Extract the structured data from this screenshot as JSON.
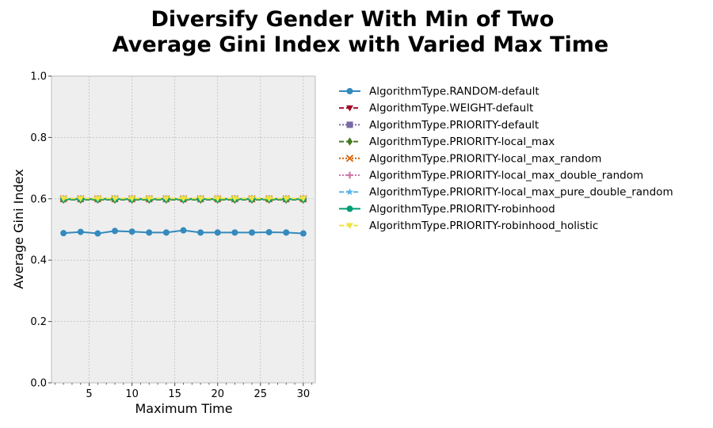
{
  "chart_data": {
    "type": "line",
    "title_lines": [
      "Diversify Gender With Min of Two",
      "Average Gini Index with Varied Max Time"
    ],
    "xlabel": "Maximum Time",
    "ylabel": "Average Gini Index",
    "xlim": [
      0.6,
      31.4
    ],
    "ylim": [
      0.0,
      1.0
    ],
    "x_ticks": [
      5,
      10,
      15,
      20,
      25,
      30
    ],
    "y_ticks": [
      0.0,
      0.2,
      0.4,
      0.6,
      0.8,
      1.0
    ],
    "y_tick_labels": [
      "0.0",
      "0.2",
      "0.4",
      "0.6",
      "0.8",
      "1.0"
    ],
    "grid": true,
    "legend_position": "outside-right",
    "background": "#eeeeee",
    "x": [
      2,
      4,
      6,
      8,
      10,
      12,
      14,
      16,
      18,
      20,
      22,
      24,
      26,
      28,
      30
    ],
    "series": [
      {
        "name": "AlgorithmType.RANDOM-default",
        "color": "#348abd",
        "marker": "circle",
        "dash": "solid",
        "values": [
          0.488,
          0.492,
          0.487,
          0.495,
          0.493,
          0.49,
          0.49,
          0.497,
          0.49,
          0.49,
          0.49,
          0.49,
          0.491,
          0.49,
          0.487
        ]
      },
      {
        "name": "AlgorithmType.WEIGHT-default",
        "color": "#a60628",
        "marker": "triangle-down",
        "dash": "dashed",
        "values": [
          0.6,
          0.6,
          0.6,
          0.6,
          0.6,
          0.6,
          0.6,
          0.6,
          0.6,
          0.6,
          0.6,
          0.6,
          0.6,
          0.6,
          0.6
        ]
      },
      {
        "name": "AlgorithmType.PRIORITY-default",
        "color": "#7a68a6",
        "marker": "square",
        "dash": "dotted",
        "values": [
          0.599,
          0.599,
          0.599,
          0.599,
          0.599,
          0.599,
          0.599,
          0.599,
          0.599,
          0.599,
          0.599,
          0.599,
          0.599,
          0.599,
          0.599
        ]
      },
      {
        "name": "AlgorithmType.PRIORITY-local_max",
        "color": "#467821",
        "marker": "diamond",
        "dash": "dashed",
        "values": [
          0.597,
          0.597,
          0.597,
          0.597,
          0.597,
          0.597,
          0.597,
          0.597,
          0.597,
          0.597,
          0.597,
          0.597,
          0.597,
          0.597,
          0.597
        ]
      },
      {
        "name": "AlgorithmType.PRIORITY-local_max_random",
        "color": "#d55e00",
        "marker": "x",
        "dash": "dotted",
        "values": [
          0.6,
          0.6,
          0.6,
          0.6,
          0.6,
          0.6,
          0.6,
          0.6,
          0.6,
          0.6,
          0.6,
          0.6,
          0.6,
          0.6,
          0.6
        ]
      },
      {
        "name": "AlgorithmType.PRIORITY-local_max_double_random",
        "color": "#cc79a7",
        "marker": "plus",
        "dash": "dotted",
        "values": [
          0.6,
          0.6,
          0.6,
          0.6,
          0.6,
          0.6,
          0.6,
          0.6,
          0.6,
          0.6,
          0.6,
          0.6,
          0.6,
          0.6,
          0.6
        ]
      },
      {
        "name": "AlgorithmType.PRIORITY-local_max_pure_double_random",
        "color": "#56b4e9",
        "marker": "star",
        "dash": "dashed",
        "values": [
          0.6,
          0.6,
          0.6,
          0.6,
          0.6,
          0.6,
          0.6,
          0.6,
          0.6,
          0.6,
          0.6,
          0.6,
          0.6,
          0.6,
          0.6
        ]
      },
      {
        "name": "AlgorithmType.PRIORITY-robinhood",
        "color": "#009e73",
        "marker": "circle",
        "dash": "solid",
        "values": [
          0.599,
          0.599,
          0.599,
          0.599,
          0.599,
          0.599,
          0.599,
          0.599,
          0.599,
          0.599,
          0.599,
          0.599,
          0.599,
          0.599,
          0.599
        ]
      },
      {
        "name": "AlgorithmType.PRIORITY-robinhood_holistic",
        "color": "#f0e442",
        "marker": "triangle-down",
        "dash": "dashed",
        "values": [
          0.601,
          0.601,
          0.601,
          0.601,
          0.601,
          0.601,
          0.601,
          0.601,
          0.601,
          0.601,
          0.601,
          0.601,
          0.601,
          0.601,
          0.601
        ]
      }
    ]
  }
}
